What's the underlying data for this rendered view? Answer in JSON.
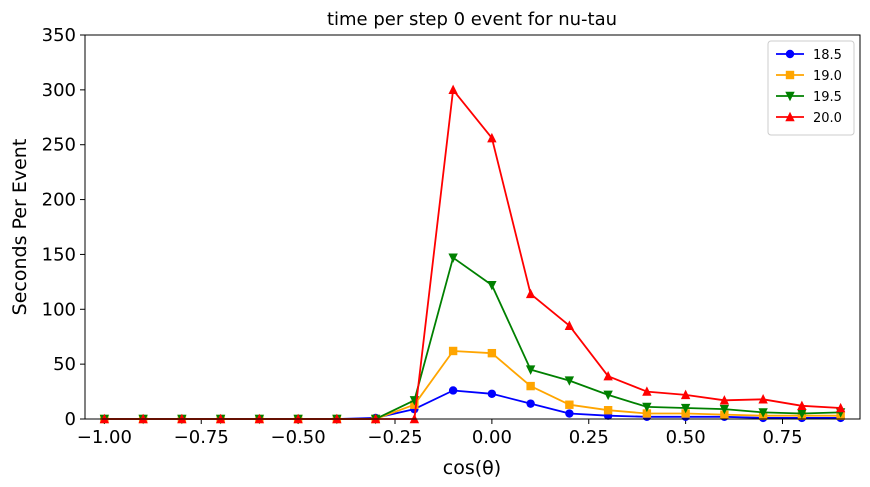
{
  "chart_data": {
    "type": "line",
    "title": "time per step 0 event for nu-tau",
    "xlabel": "cos(θ)",
    "ylabel": "Seconds Per Event",
    "xlim": [
      -1.05,
      0.95
    ],
    "ylim": [
      0,
      350
    ],
    "x_ticks": [
      -1.0,
      -0.75,
      -0.5,
      -0.25,
      0.0,
      0.25,
      0.5,
      0.75
    ],
    "x_tick_labels": [
      "−1.00",
      "−0.75",
      "−0.50",
      "−0.25",
      "0.00",
      "0.25",
      "0.50",
      "0.75"
    ],
    "y_ticks": [
      0,
      50,
      100,
      150,
      200,
      250,
      300,
      350
    ],
    "y_tick_labels": [
      "0",
      "50",
      "100",
      "150",
      "200",
      "250",
      "300",
      "350"
    ],
    "grid": false,
    "legend_position": "top-right",
    "x": [
      -1.0,
      -0.9,
      -0.8,
      -0.7,
      -0.6,
      -0.5,
      -0.4,
      -0.3,
      -0.2,
      -0.1,
      0.0,
      0.1,
      0.2,
      0.3,
      0.4,
      0.5,
      0.6,
      0.7,
      0.8,
      0.9
    ],
    "series": [
      {
        "name": "18.5",
        "color": "#0000ff",
        "marker": "circle",
        "values": [
          0,
          0,
          0,
          0,
          0,
          0,
          0,
          1,
          9,
          26,
          23,
          14,
          5,
          3,
          2,
          2,
          2,
          1,
          1,
          1
        ]
      },
      {
        "name": "19.0",
        "color": "#ffa500",
        "marker": "square",
        "values": [
          0,
          0,
          0,
          0,
          0,
          0,
          0,
          0,
          13,
          62,
          60,
          30,
          13,
          8,
          5,
          5,
          4,
          3,
          3,
          3
        ]
      },
      {
        "name": "19.5",
        "color": "#008000",
        "marker": "triangle-down",
        "values": [
          0,
          0,
          0,
          0,
          0,
          0,
          0,
          0,
          17,
          147,
          122,
          45,
          35,
          22,
          11,
          10,
          9,
          6,
          5,
          6
        ]
      },
      {
        "name": "20.0",
        "color": "#ff0000",
        "marker": "triangle-up",
        "values": [
          0,
          0,
          0,
          0,
          0,
          0,
          0,
          0,
          0,
          300,
          256,
          114,
          85,
          39,
          25,
          22,
          17,
          18,
          12,
          10
        ]
      }
    ]
  }
}
